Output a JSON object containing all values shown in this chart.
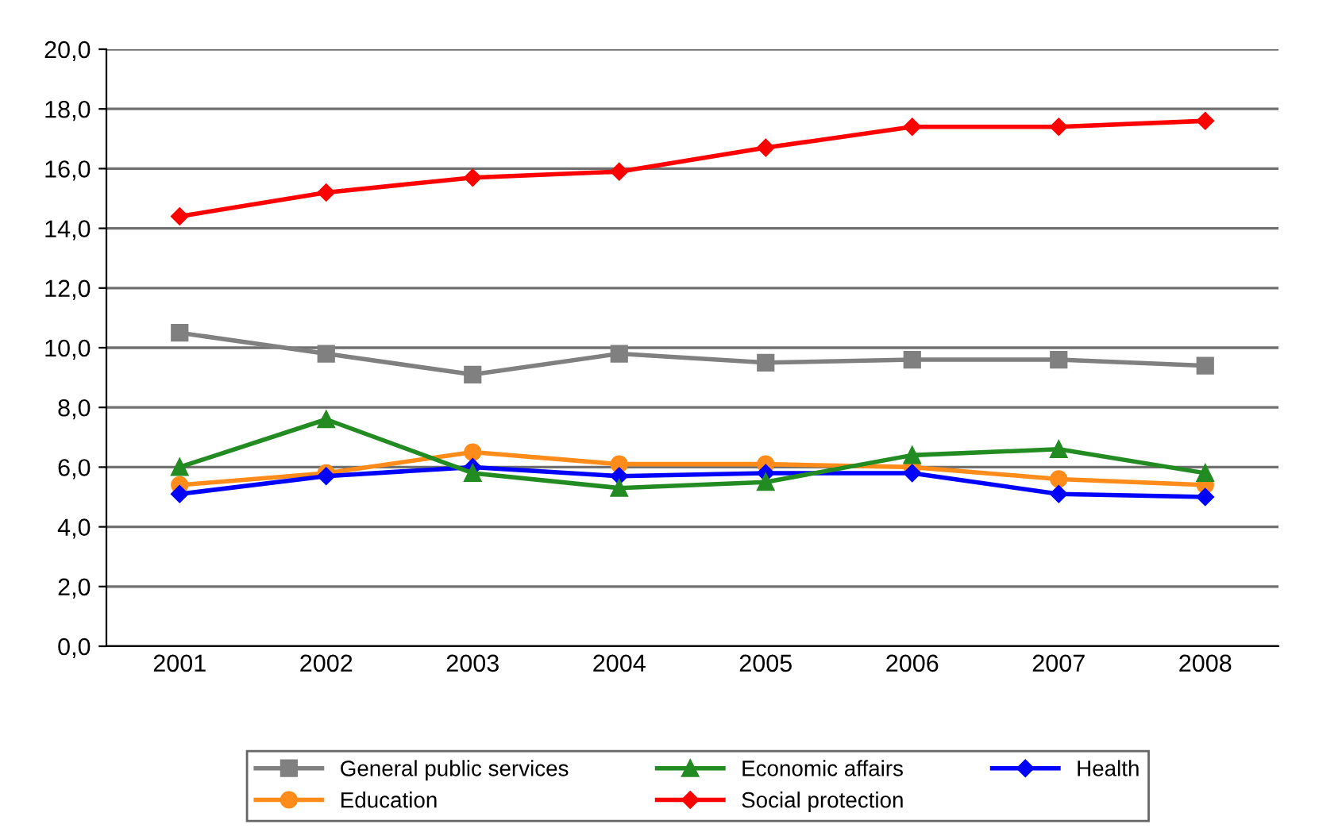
{
  "chart_data": {
    "type": "line",
    "categories": [
      "2001",
      "2002",
      "2003",
      "2004",
      "2005",
      "2006",
      "2007",
      "2008"
    ],
    "series": [
      {
        "name": "General public services",
        "color": "#808080",
        "marker": "square",
        "values": [
          10.5,
          9.8,
          9.1,
          9.8,
          9.5,
          9.6,
          9.6,
          9.4
        ]
      },
      {
        "name": "Economic affairs",
        "color": "#228b22",
        "marker": "triangle",
        "values": [
          6.0,
          7.6,
          5.8,
          5.3,
          5.5,
          6.4,
          6.6,
          5.8
        ]
      },
      {
        "name": "Health",
        "color": "#0000ff",
        "marker": "diamond",
        "values": [
          5.1,
          5.7,
          6.0,
          5.7,
          5.8,
          5.8,
          5.1,
          5.0
        ]
      },
      {
        "name": "Education",
        "color": "#ff8c1a",
        "marker": "circle",
        "values": [
          5.4,
          5.8,
          6.5,
          6.1,
          6.1,
          6.0,
          5.6,
          5.4
        ]
      },
      {
        "name": "Social protection",
        "color": "#ff0000",
        "marker": "diamond",
        "values": [
          14.4,
          15.2,
          15.7,
          15.9,
          16.7,
          17.4,
          17.4,
          17.6
        ]
      }
    ],
    "ylim": [
      0,
      20
    ],
    "yticks": [
      {
        "value": 0,
        "label": "0,0"
      },
      {
        "value": 2,
        "label": "2,0"
      },
      {
        "value": 4,
        "label": "4,0"
      },
      {
        "value": 6,
        "label": "6,0"
      },
      {
        "value": 8,
        "label": "8,0"
      },
      {
        "value": 10,
        "label": "10,0"
      },
      {
        "value": 12,
        "label": "12,0"
      },
      {
        "value": 14,
        "label": "14,0"
      },
      {
        "value": 16,
        "label": "16,0"
      },
      {
        "value": 18,
        "label": "18,0"
      },
      {
        "value": 20,
        "label": "20,0"
      }
    ],
    "grid": "y",
    "legend": "bottom",
    "line_style": "solid"
  }
}
